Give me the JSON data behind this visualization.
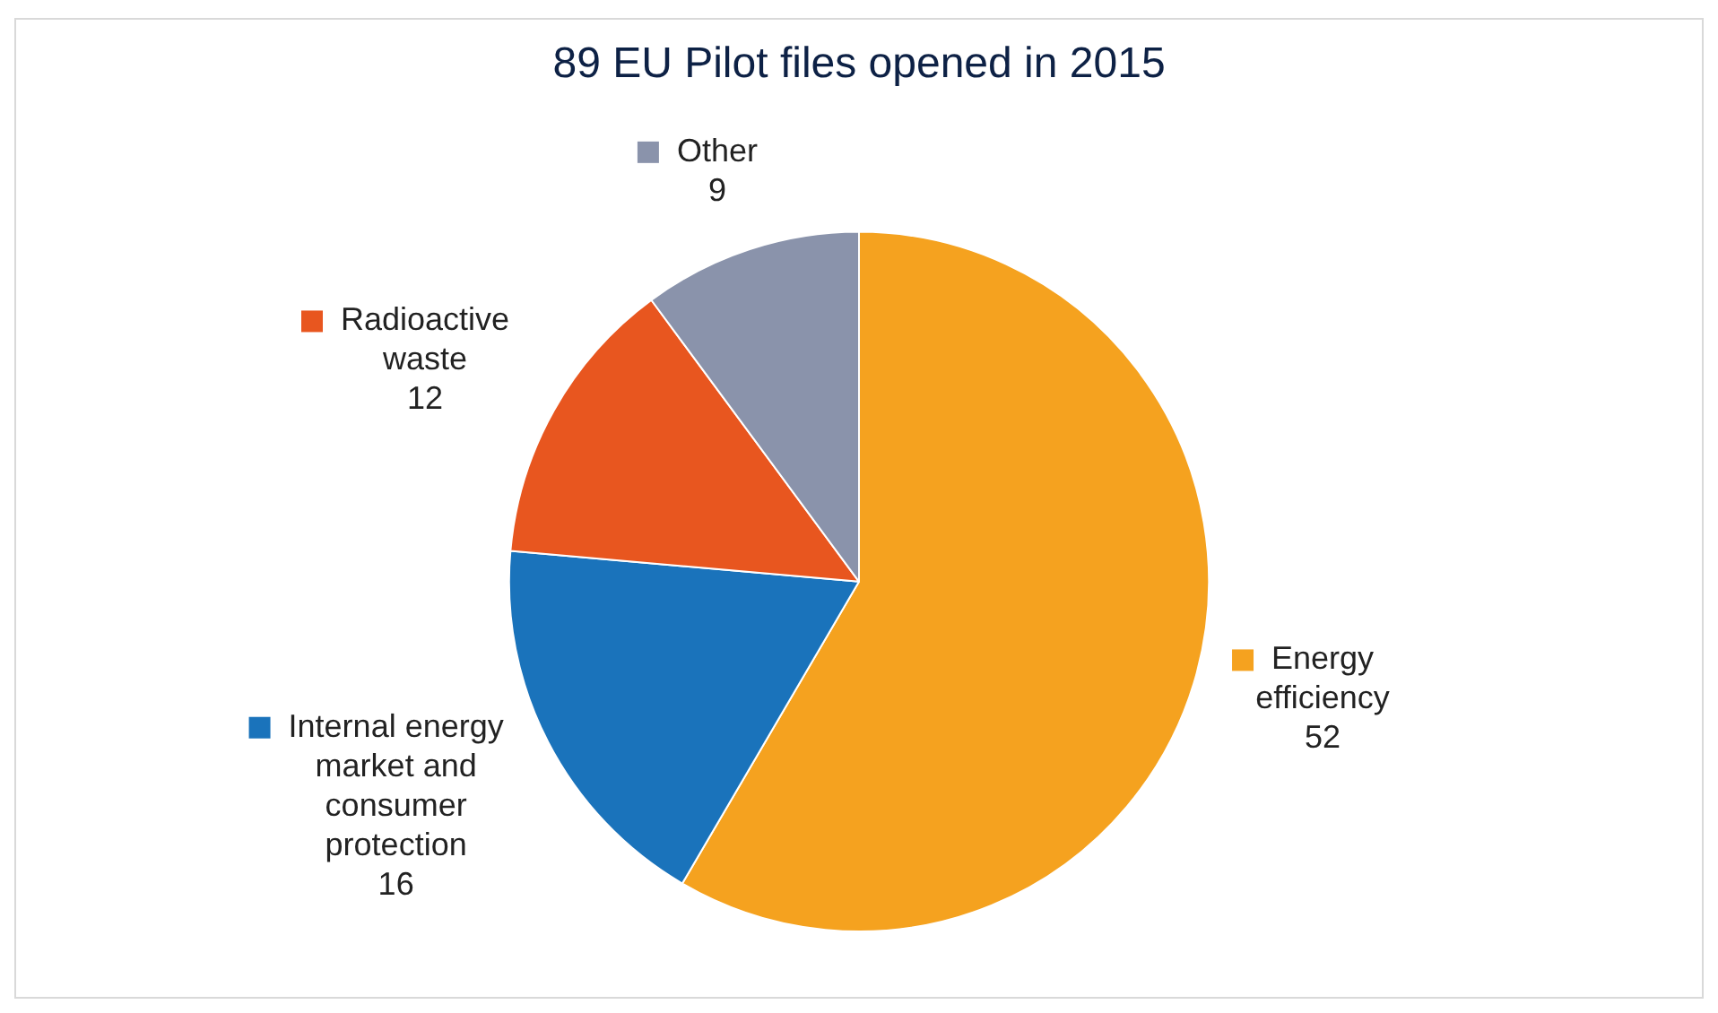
{
  "chart_data": {
    "type": "pie",
    "title": "89 EU Pilot files opened in 2015",
    "categories": [
      "Energy efficiency",
      "Internal energy market and consumer protection",
      "Radioactive waste",
      "Other"
    ],
    "values": [
      52,
      16,
      12,
      9
    ],
    "colors": [
      "#f5a21f",
      "#1a73bb",
      "#e8561f",
      "#8a93ab"
    ],
    "data_labels": true,
    "legend": "top left"
  }
}
